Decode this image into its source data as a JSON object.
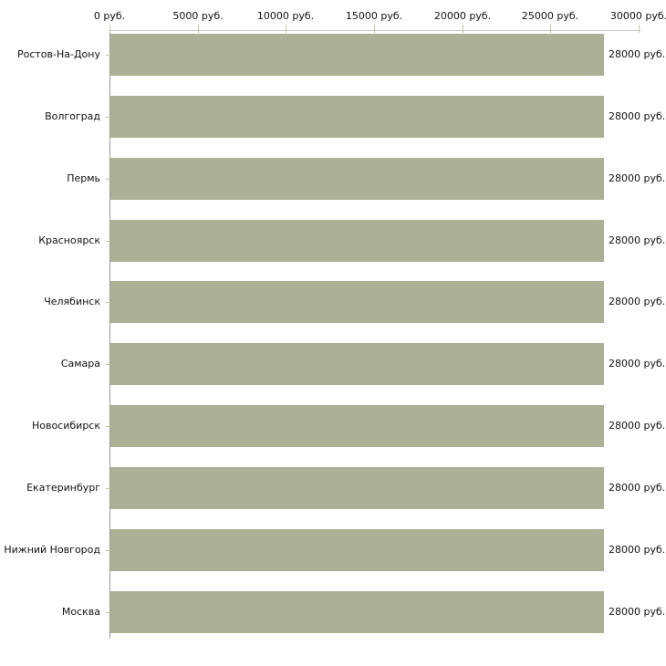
{
  "chart_data": {
    "type": "bar",
    "orientation": "horizontal",
    "title": "",
    "categories": [
      "Ростов-На-Дону",
      "Волгоград",
      "Пермь",
      "Красноярск",
      "Челябинск",
      "Самара",
      "Новосибирск",
      "Екатеринбург",
      "Нижний Новгород",
      "Москва"
    ],
    "values": [
      28000,
      28000,
      28000,
      28000,
      28000,
      28000,
      28000,
      28000,
      28000,
      28000
    ],
    "value_labels": [
      "28000 руб.",
      "28000 руб.",
      "28000 руб.",
      "28000 руб.",
      "28000 руб.",
      "28000 руб.",
      "28000 руб.",
      "28000 руб.",
      "28000 руб.",
      "28000 руб."
    ],
    "unit": "руб.",
    "x_axis": {
      "position": "top",
      "min": 0,
      "max": 30000,
      "tick_interval": 5000,
      "tick_labels": [
        "0 руб.",
        "5000 руб.",
        "10000 руб.",
        "15000 руб.",
        "20000 руб.",
        "25000 руб.",
        "30000 руб."
      ]
    },
    "grid": false,
    "legend": false,
    "colors": {
      "bar": "#acb195",
      "axis_line": "#c5c5c5",
      "y_axis_line": "#9a9a9a",
      "tick": "#c9c6a0",
      "text": "#111111",
      "background": "#ffffff"
    }
  }
}
